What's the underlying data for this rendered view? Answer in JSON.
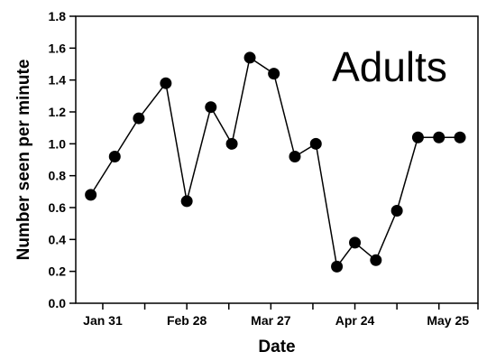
{
  "chart_data": {
    "type": "line",
    "title": "",
    "annotation": "Adults",
    "xlabel": "Date",
    "ylabel": "Number seen per minute",
    "ylim": [
      0,
      1.8
    ],
    "yticks": [
      "0.0",
      "0.2",
      "0.4",
      "0.6",
      "0.8",
      "1.0",
      "1.2",
      "1.4",
      "1.6",
      "1.8"
    ],
    "xlim": [
      "2000-01-22",
      "2000-06-04"
    ],
    "xtick_labels": [
      {
        "date": "2000-01-31",
        "label": "Jan 31"
      },
      {
        "date": "2000-02-28",
        "label": "Feb 28"
      },
      {
        "date": "2000-03-27",
        "label": "Mar 27"
      },
      {
        "date": "2000-04-24",
        "label": "Apr 24"
      },
      {
        "date": "2000-05-25",
        "label": "May 25"
      }
    ],
    "xtick_marks": [
      "2000-01-31",
      "2000-02-14",
      "2000-02-28",
      "2000-03-13",
      "2000-03-27",
      "2000-04-10",
      "2000-04-24",
      "2000-05-08",
      "2000-05-22",
      "2000-06-04"
    ],
    "grid": false,
    "series": [
      {
        "x": [
          "2000-01-27",
          "2000-02-04",
          "2000-02-12",
          "2000-02-21",
          "2000-02-28",
          "2000-03-07",
          "2000-03-14",
          "2000-03-20",
          "2000-03-28",
          "2000-04-04",
          "2000-04-11",
          "2000-04-18",
          "2000-04-24",
          "2000-05-01",
          "2000-05-08",
          "2000-05-15",
          "2000-05-22",
          "2000-05-29"
        ],
        "y": [
          0.68,
          0.92,
          1.16,
          1.38,
          0.64,
          1.23,
          1.0,
          1.54,
          1.44,
          0.92,
          1.0,
          0.23,
          0.38,
          0.27,
          0.58,
          1.04,
          1.04,
          1.04
        ],
        "color": "#000000"
      }
    ]
  }
}
